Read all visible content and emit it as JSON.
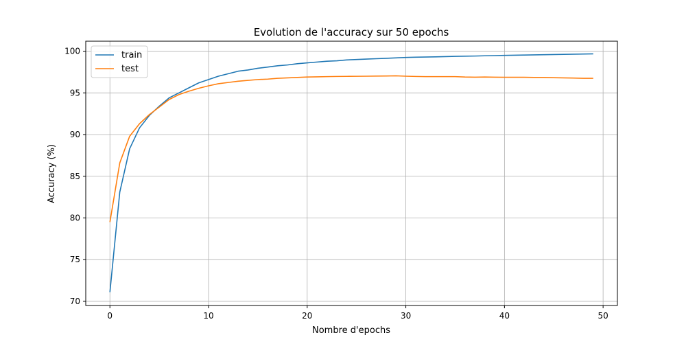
{
  "chart_data": {
    "type": "line",
    "title": "Evolution de l'accuracy sur 50 epochs",
    "xlabel": "Nombre d'epochs",
    "ylabel": "Accuracy (%)",
    "xlim": [
      -2.45,
      51.45
    ],
    "ylim": [
      69.5,
      101.2
    ],
    "xticks": [
      0,
      10,
      20,
      30,
      40,
      50
    ],
    "yticks": [
      70,
      75,
      80,
      85,
      90,
      95,
      100
    ],
    "grid": true,
    "legend_position": "top-left",
    "x": [
      0,
      1,
      2,
      3,
      4,
      5,
      6,
      7,
      8,
      9,
      10,
      11,
      12,
      13,
      14,
      15,
      16,
      17,
      18,
      19,
      20,
      21,
      22,
      23,
      24,
      25,
      26,
      27,
      28,
      29,
      30,
      31,
      32,
      33,
      34,
      35,
      36,
      37,
      38,
      39,
      40,
      41,
      42,
      43,
      44,
      45,
      46,
      47,
      48,
      49
    ],
    "series": [
      {
        "name": "train",
        "color": "#1f77b4",
        "values": [
          71.1,
          83.1,
          88.3,
          90.8,
          92.3,
          93.4,
          94.4,
          95.0,
          95.6,
          96.2,
          96.6,
          97.0,
          97.3,
          97.6,
          97.75,
          97.95,
          98.1,
          98.25,
          98.35,
          98.5,
          98.6,
          98.7,
          98.8,
          98.85,
          98.95,
          99.0,
          99.05,
          99.1,
          99.15,
          99.2,
          99.25,
          99.28,
          99.3,
          99.32,
          99.35,
          99.38,
          99.4,
          99.42,
          99.45,
          99.47,
          99.5,
          99.52,
          99.54,
          99.56,
          99.58,
          99.6,
          99.62,
          99.64,
          99.66,
          99.68
        ]
      },
      {
        "name": "test",
        "color": "#ff7f0e",
        "values": [
          79.5,
          86.6,
          89.8,
          91.3,
          92.4,
          93.3,
          94.2,
          94.8,
          95.2,
          95.55,
          95.85,
          96.1,
          96.25,
          96.4,
          96.5,
          96.6,
          96.65,
          96.75,
          96.8,
          96.85,
          96.9,
          96.92,
          96.95,
          96.97,
          96.98,
          96.99,
          97.0,
          97.02,
          97.03,
          97.05,
          97.0,
          96.97,
          96.95,
          96.95,
          96.95,
          96.95,
          96.9,
          96.88,
          96.9,
          96.88,
          96.87,
          96.87,
          96.87,
          96.85,
          96.85,
          96.82,
          96.8,
          96.78,
          96.75,
          96.75
        ]
      }
    ]
  }
}
